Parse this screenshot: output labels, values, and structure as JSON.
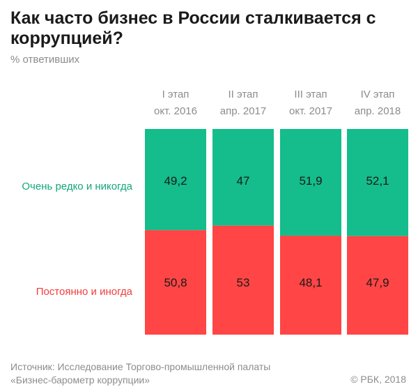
{
  "title": "Как часто бизнес в России сталкивается с коррупцией?",
  "subtitle": "% ответивших",
  "colors": {
    "green": "#14bd8b",
    "red": "#ff4545",
    "label_green": "#14a67a",
    "label_red": "#f23c3c",
    "header_text": "#8c8c8c",
    "value_text": "#1a1a1a"
  },
  "chart_data": {
    "type": "bar",
    "stacked": true,
    "normalized_percent": true,
    "categories": [
      {
        "line1": "I этап",
        "line2": "окт. 2016"
      },
      {
        "line1": "II этап",
        "line2": "апр. 2017"
      },
      {
        "line1": "III этап",
        "line2": "окт. 2017"
      },
      {
        "line1": "IV этап",
        "line2": "апр. 2018"
      }
    ],
    "series": [
      {
        "name": "Очень редко и никогда",
        "values": [
          49.2,
          47,
          51.9,
          52.1
        ],
        "labels": [
          "49,2",
          "47",
          "51,9",
          "52,1"
        ]
      },
      {
        "name": "Постоянно и иногда",
        "values": [
          50.8,
          53,
          48.1,
          47.9
        ],
        "labels": [
          "50,8",
          "53",
          "48,1",
          "47,9"
        ]
      }
    ],
    "ylim": [
      0,
      100
    ]
  },
  "source_line1": "Источник: Исследование Торгово-промышленной палаты",
  "source_line2": "«Бизнес-барометр коррупции»",
  "copyright": "© РБК, 2018"
}
